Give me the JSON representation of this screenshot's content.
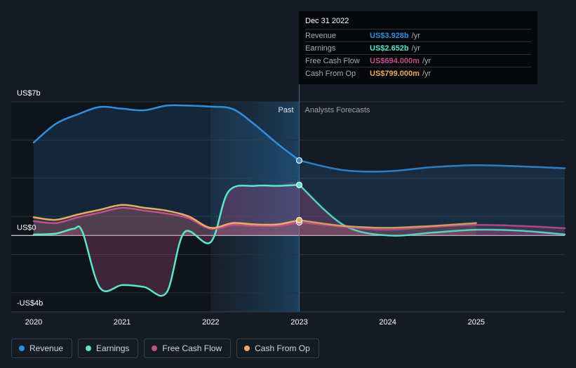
{
  "chart_data": {
    "type": "line",
    "y_unit": "US$ billions",
    "ylim": [
      -4,
      7
    ],
    "y_tick_labels": [
      {
        "value": 7,
        "label": "US$7b"
      },
      {
        "value": 0,
        "label": "US$0"
      },
      {
        "value": -4,
        "label": "-US$4b"
      }
    ],
    "x_range": [
      2020.0,
      2026.0
    ],
    "x_tick_labels": [
      "2020",
      "2021",
      "2022",
      "2023",
      "2024",
      "2025"
    ],
    "divider_x": 2023.0,
    "past_label": "Past",
    "forecast_label": "Analysts Forecasts",
    "series": [
      {
        "name": "Revenue",
        "color": "#2f8fdf",
        "points": [
          [
            2020.0,
            4.87
          ],
          [
            2020.25,
            5.85
          ],
          [
            2020.5,
            6.35
          ],
          [
            2020.75,
            6.73
          ],
          [
            2021.0,
            6.64
          ],
          [
            2021.25,
            6.56
          ],
          [
            2021.5,
            6.8
          ],
          [
            2021.75,
            6.8
          ],
          [
            2022.0,
            6.75
          ],
          [
            2022.25,
            6.62
          ],
          [
            2022.5,
            5.8
          ],
          [
            2022.75,
            4.82
          ],
          [
            2023.0,
            3.93
          ],
          [
            2023.5,
            3.42
          ],
          [
            2024.0,
            3.36
          ],
          [
            2024.5,
            3.58
          ],
          [
            2025.0,
            3.68
          ],
          [
            2025.5,
            3.62
          ],
          [
            2026.0,
            3.52
          ]
        ]
      },
      {
        "name": "Earnings",
        "color": "#5ce6cc",
        "points": [
          [
            2020.0,
            0.05
          ],
          [
            2020.25,
            0.1
          ],
          [
            2020.45,
            0.35
          ],
          [
            2020.55,
            0.2
          ],
          [
            2020.75,
            -2.75
          ],
          [
            2021.0,
            -2.6
          ],
          [
            2021.25,
            -2.7
          ],
          [
            2021.5,
            -3.0
          ],
          [
            2021.7,
            0.15
          ],
          [
            2022.0,
            -0.35
          ],
          [
            2022.2,
            2.3
          ],
          [
            2022.5,
            2.6
          ],
          [
            2022.75,
            2.6
          ],
          [
            2023.0,
            2.65
          ],
          [
            2023.5,
            0.55
          ],
          [
            2024.0,
            0.0
          ],
          [
            2024.5,
            0.15
          ],
          [
            2025.0,
            0.3
          ],
          [
            2025.5,
            0.25
          ],
          [
            2026.0,
            0.05
          ]
        ]
      },
      {
        "name": "Free Cash Flow",
        "color": "#c04f8d",
        "points": [
          [
            2020.0,
            0.75
          ],
          [
            2020.25,
            0.65
          ],
          [
            2020.5,
            0.95
          ],
          [
            2020.75,
            1.2
          ],
          [
            2021.0,
            1.45
          ],
          [
            2021.25,
            1.3
          ],
          [
            2021.5,
            1.15
          ],
          [
            2021.75,
            0.9
          ],
          [
            2022.0,
            0.35
          ],
          [
            2022.25,
            0.55
          ],
          [
            2022.5,
            0.5
          ],
          [
            2022.75,
            0.5
          ],
          [
            2023.0,
            0.69
          ],
          [
            2023.5,
            0.45
          ],
          [
            2024.0,
            0.3
          ],
          [
            2024.5,
            0.45
          ],
          [
            2025.0,
            0.55
          ],
          [
            2025.5,
            0.5
          ],
          [
            2026.0,
            0.38
          ]
        ]
      },
      {
        "name": "Cash From Op",
        "color": "#e9ac62",
        "points": [
          [
            2020.0,
            0.95
          ],
          [
            2020.25,
            0.82
          ],
          [
            2020.5,
            1.1
          ],
          [
            2020.75,
            1.35
          ],
          [
            2021.0,
            1.6
          ],
          [
            2021.25,
            1.45
          ],
          [
            2021.5,
            1.3
          ],
          [
            2021.75,
            1.0
          ],
          [
            2022.0,
            0.4
          ],
          [
            2022.25,
            0.65
          ],
          [
            2022.5,
            0.58
          ],
          [
            2022.75,
            0.58
          ],
          [
            2023.0,
            0.8
          ],
          [
            2023.5,
            0.5
          ],
          [
            2024.0,
            0.4
          ],
          [
            2024.5,
            0.5
          ],
          [
            2025.0,
            0.65
          ]
        ]
      }
    ]
  },
  "tooltip": {
    "date": "Dec 31 2022",
    "rows": [
      {
        "label": "Revenue",
        "value": "US$3.928b",
        "unit": "/yr",
        "color": "#2f8fdf"
      },
      {
        "label": "Earnings",
        "value": "US$2.652b",
        "unit": "/yr",
        "color": "#5ce6cc"
      },
      {
        "label": "Free Cash Flow",
        "value": "US$694.000m",
        "unit": "/yr",
        "color": "#c04f8d"
      },
      {
        "label": "Cash From Op",
        "value": "US$799.000m",
        "unit": "/yr",
        "color": "#e9ac62"
      }
    ]
  },
  "legend": [
    {
      "label": "Revenue",
      "color": "#2f8fdf"
    },
    {
      "label": "Earnings",
      "color": "#5ce6cc"
    },
    {
      "label": "Free Cash Flow",
      "color": "#c04f8d"
    },
    {
      "label": "Cash From Op",
      "color": "#e9ac62"
    }
  ]
}
